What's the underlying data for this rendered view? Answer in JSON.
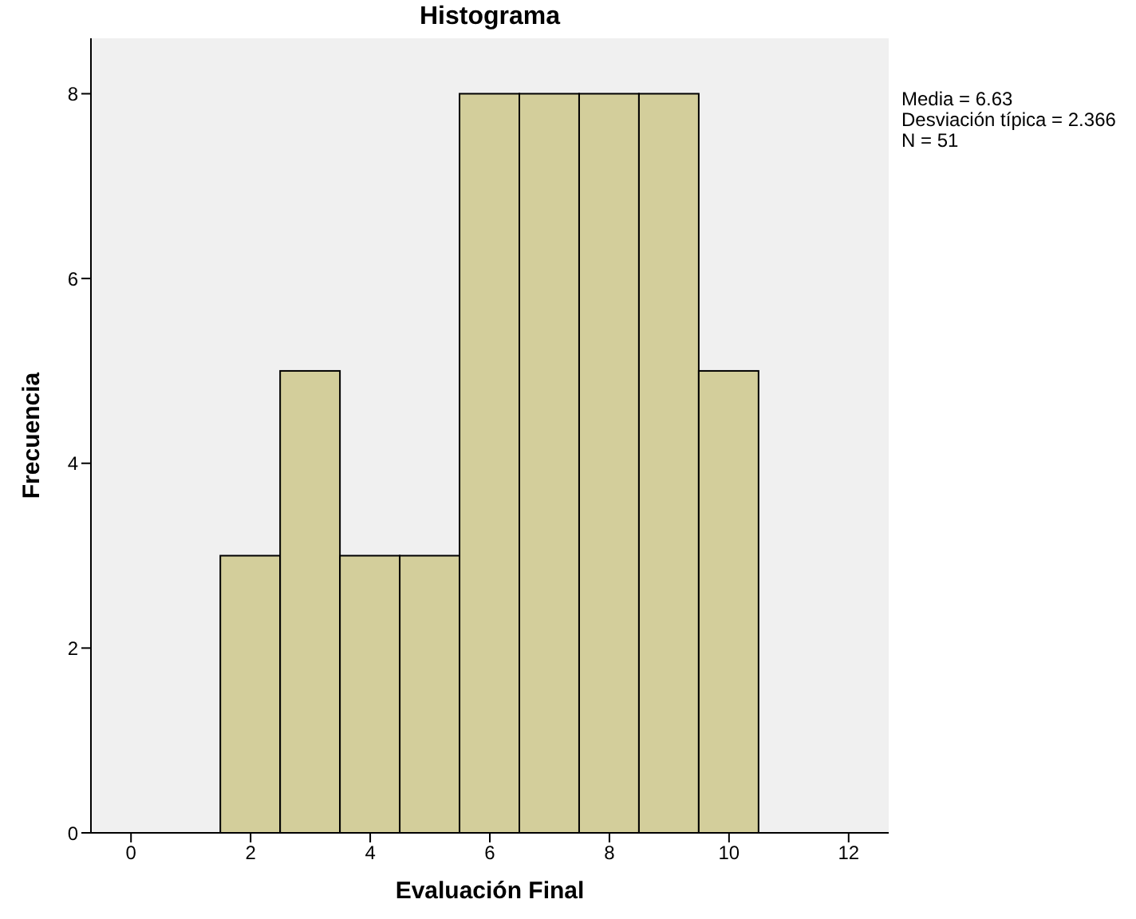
{
  "chart_data": {
    "type": "histogram",
    "title": "Histograma",
    "xlabel": "Evaluación Final",
    "ylabel": "Frecuencia",
    "bins": [
      1.5,
      2.5,
      3.5,
      4.5,
      5.5,
      6.5,
      7.5,
      8.5,
      9.5,
      10.5
    ],
    "values": [
      3,
      5,
      3,
      3,
      8,
      8,
      8,
      8,
      5
    ],
    "color": "#d3ce9b",
    "xlim": [
      -0.67,
      12.67
    ],
    "xticks": [
      0,
      2,
      4,
      6,
      8,
      10,
      12
    ],
    "ylim": [
      0,
      8.6
    ],
    "yticks": [
      0,
      2,
      4,
      6,
      8
    ],
    "annotations": [
      "Media = 6.63",
      "Desviación típica = 2.366",
      "N = 51"
    ]
  }
}
